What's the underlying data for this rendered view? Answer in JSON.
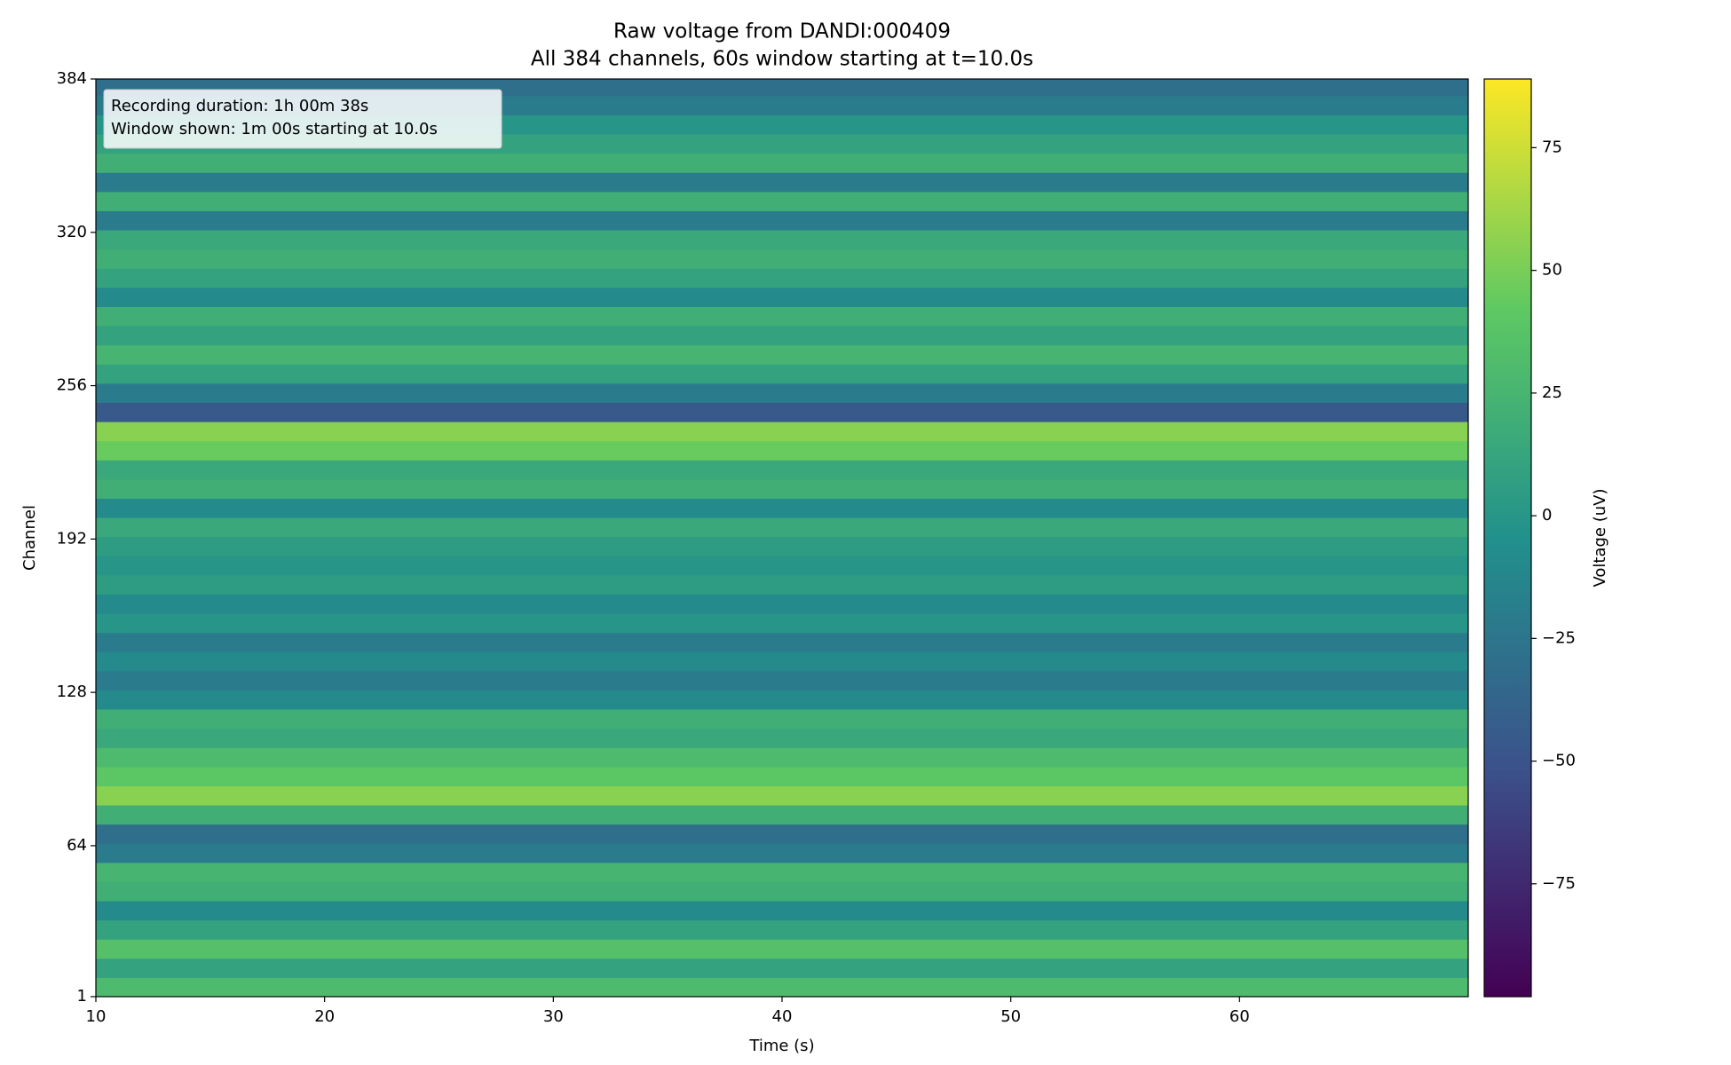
{
  "chart_data": {
    "type": "heatmap",
    "title": "Raw voltage from DANDI:000409",
    "subtitle": "All 384 channels, 60s window starting at t=10.0s",
    "x_label": "Time (s)",
    "y_label": "Channel",
    "colorbar_label": "Voltage (uV)",
    "annotations": [
      "Recording duration: 1h 00m 38s",
      "Window shown: 1m 00s starting at 10.0s"
    ],
    "xlim": [
      10,
      70
    ],
    "xticks": [
      10,
      20,
      30,
      40,
      50,
      60
    ],
    "ylim": [
      1,
      384
    ],
    "yticks": [
      1,
      64,
      128,
      192,
      256,
      320,
      384
    ],
    "clim": [
      -98,
      89
    ],
    "cticks": [
      {
        "value": -75,
        "label": "−75"
      },
      {
        "value": -50,
        "label": "−50"
      },
      {
        "value": -25,
        "label": "−25"
      },
      0,
      25,
      50,
      75
    ],
    "colormap": [
      "#440154",
      "#3b528b",
      "#21918c",
      "#5ec962",
      "#fde725"
    ],
    "y_bins": [
      1,
      9,
      17,
      25,
      33,
      41,
      49,
      57,
      65,
      73,
      81,
      89,
      97,
      105,
      113,
      121,
      129,
      137,
      145,
      153,
      161,
      169,
      177,
      185,
      193,
      201,
      209,
      217,
      225,
      233,
      241,
      249,
      257,
      265,
      273,
      281,
      289,
      297,
      305,
      313,
      321,
      329,
      337,
      345,
      353,
      361,
      369,
      377,
      384
    ],
    "values": [
      30,
      10,
      35,
      10,
      -10,
      20,
      25,
      -20,
      -30,
      20,
      55,
      40,
      30,
      15,
      20,
      -10,
      -20,
      -10,
      -20,
      0,
      -10,
      5,
      0,
      5,
      15,
      -10,
      20,
      15,
      45,
      55,
      -45,
      -20,
      10,
      25,
      10,
      20,
      -10,
      10,
      20,
      15,
      -20,
      20,
      -20,
      20,
      10,
      0,
      -20,
      -30
    ]
  }
}
